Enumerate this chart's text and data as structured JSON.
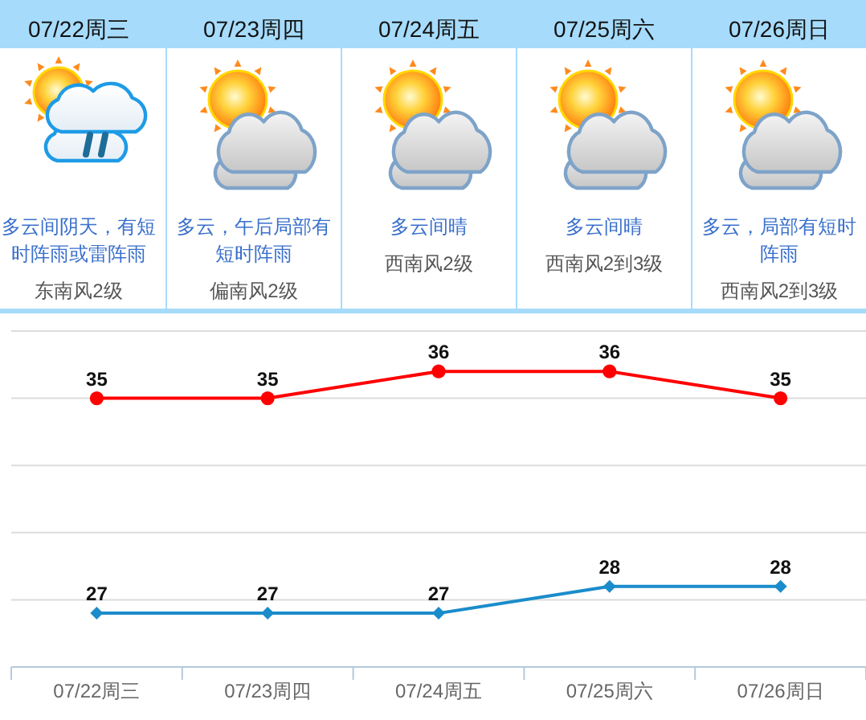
{
  "chart_data": [
    {
      "type": "other",
      "categories": [
        "07/22周三",
        "07/23周四",
        "07/24周五",
        "07/25周六",
        "07/26周日"
      ],
      "annotations": [
        "多云间阴天，有短时阵雨或雷阵雨",
        "东南风2级",
        "多云，午后局部有短时阵雨",
        "偏南风2级",
        "多云间晴",
        "西南风2级",
        "多云间晴",
        "西南风2到3级",
        "多云，局部有短时阵雨",
        "西南风2到3级"
      ]
    },
    {
      "type": "line",
      "categories": [
        "07/22周三",
        "07/23周四",
        "07/24周五",
        "07/25周六",
        "07/26周日"
      ],
      "series": [
        {
          "color": "#ff0000",
          "values": [
            35,
            35,
            36,
            36,
            35
          ],
          "marker": "circle"
        },
        {
          "color": "#1a8ccb",
          "values": [
            27,
            27,
            27,
            28,
            28
          ],
          "marker": "diamond"
        }
      ],
      "ylim": [
        25,
        37.5
      ],
      "yticks": [
        {
          "value": 25,
          "label": null
        },
        {
          "value": 27.5,
          "label": null
        },
        {
          "value": 30,
          "label": null
        },
        {
          "value": 32.5,
          "label": null
        },
        {
          "value": 35,
          "label": null
        },
        {
          "value": 37.5,
          "label": null
        }
      ],
      "tick_labels": "x",
      "grid": "y",
      "data_labels": true
    }
  ]
}
